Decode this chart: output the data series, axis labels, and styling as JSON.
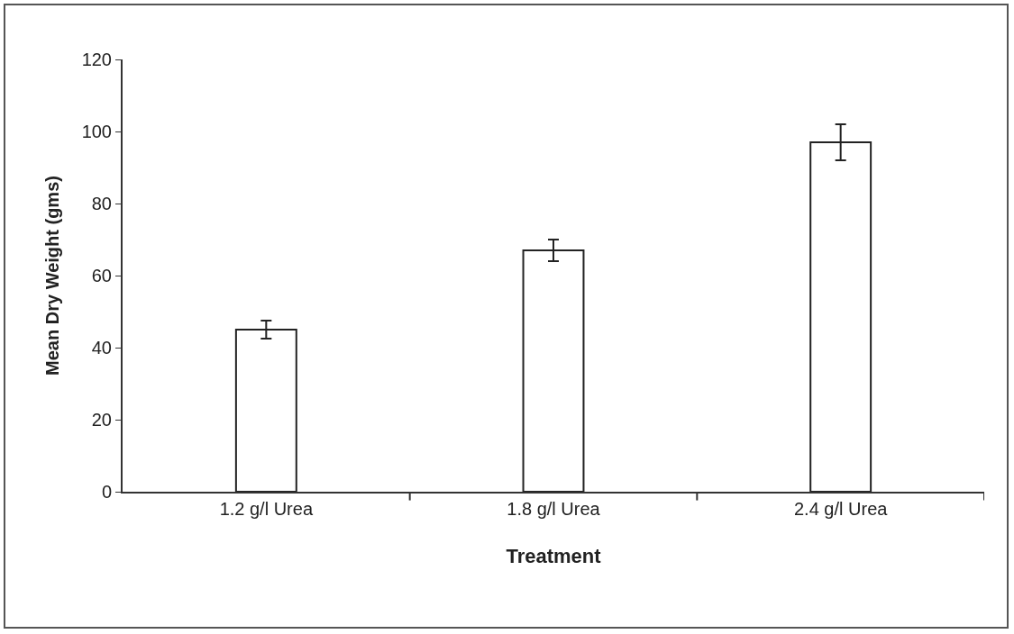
{
  "chart_data": {
    "type": "bar",
    "xlabel": "Treatment",
    "ylabel": "Mean Dry Weight (gms)",
    "categories": [
      "1.2 g/l Urea",
      "1.8 g/l Urea",
      "2.4 g/l Urea"
    ],
    "values": [
      45,
      67,
      97
    ],
    "errors": [
      2.5,
      3,
      5
    ],
    "color": "#ffffff",
    "ylim": [
      0,
      120
    ],
    "yticks": [
      0,
      20,
      40,
      60,
      80,
      100,
      120
    ],
    "grid": false
  }
}
